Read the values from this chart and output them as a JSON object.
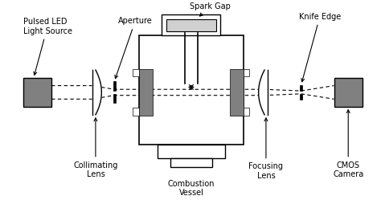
{
  "bg_color": "#ffffff",
  "line_color": "#000000",
  "gray_color": "#808080",
  "light_gray": "#d0d0d0",
  "fontsize": 7.0,
  "labels": {
    "led": "Pulsed LED\nLight Source",
    "aperture": "Aperture",
    "collimating": "Collimating\nLens",
    "combustion": "Combustion\nVessel",
    "spark": "Spark Gap",
    "focusing": "Focusing\nLens",
    "knife": "Knife Edge",
    "cmos": "CMOS\nCamera"
  }
}
